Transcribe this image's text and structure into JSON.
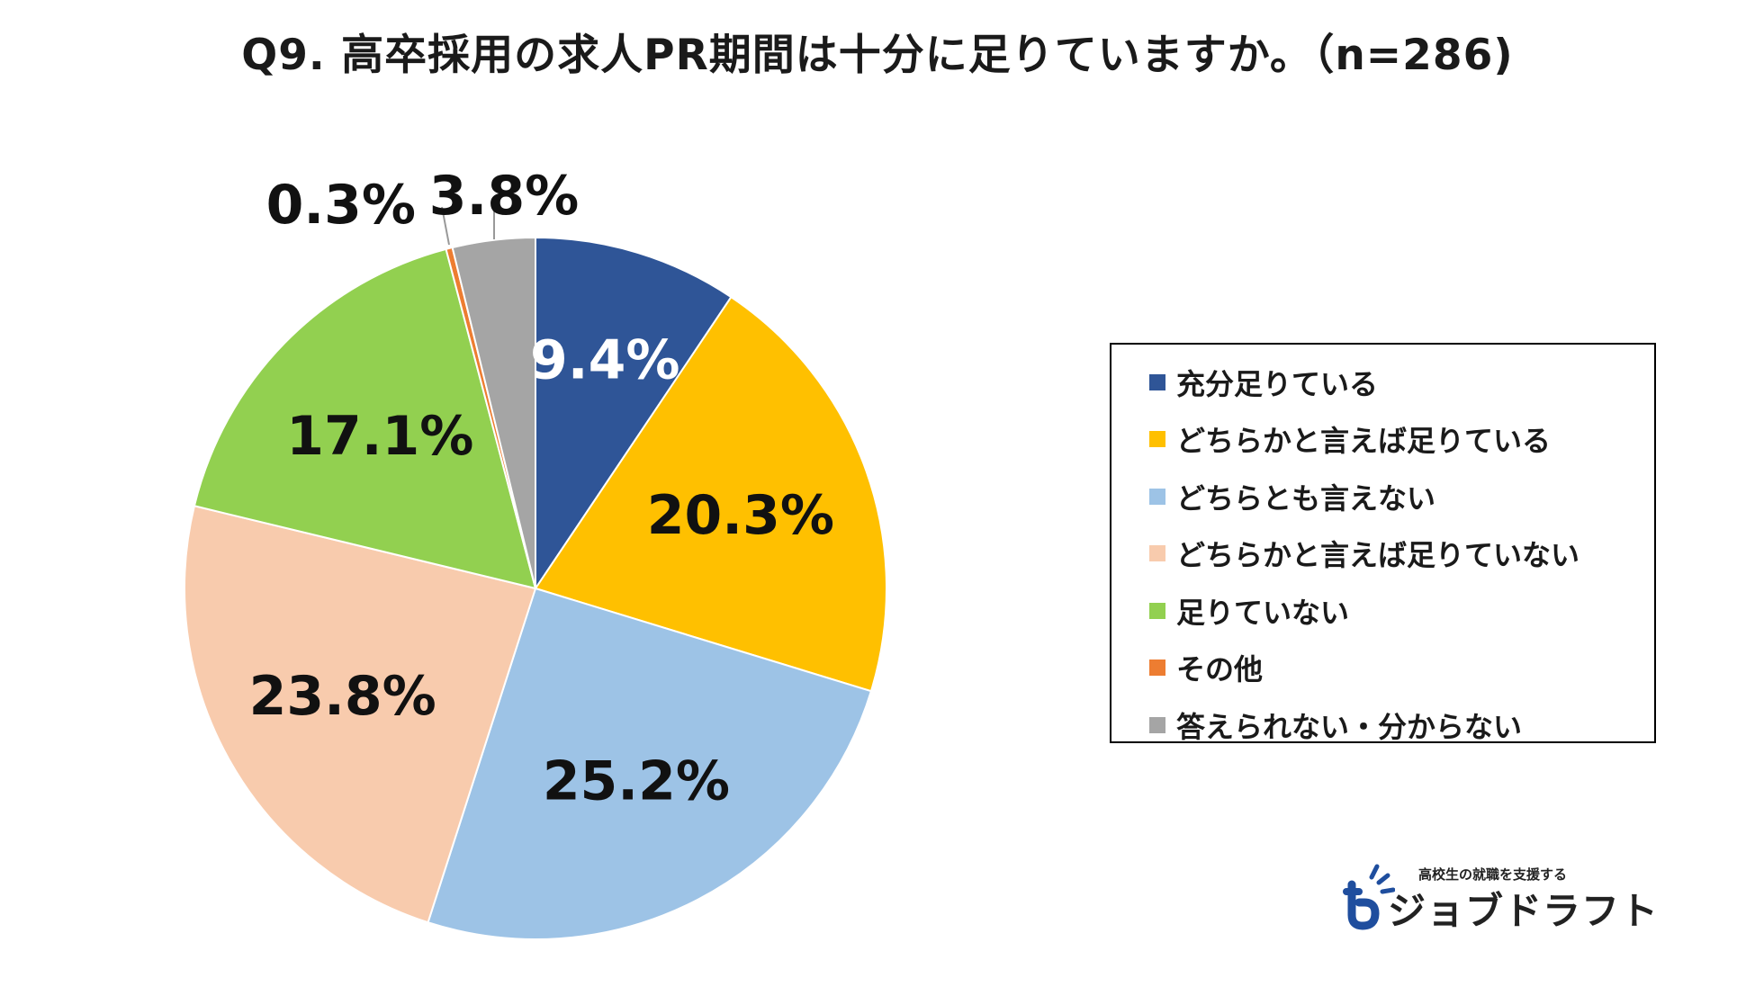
{
  "chart_data": {
    "type": "pie",
    "title": "Q9. 高卒採用の求人PR期間は十分に足りていますか。（n=286)",
    "slices": [
      {
        "label": "充分足りている",
        "value": 9.4,
        "display": "9.4%",
        "color": "#2F5597",
        "text_color": "#ffffff"
      },
      {
        "label": "どちらかと言えば足りている",
        "value": 20.3,
        "display": "20.3%",
        "color": "#FFC000",
        "text_color": "#111111"
      },
      {
        "label": "どちらとも言えない",
        "value": 25.2,
        "display": "25.2%",
        "color": "#9DC3E6",
        "text_color": "#111111"
      },
      {
        "label": "どちらかと言えば足りていない",
        "value": 23.8,
        "display": "23.8%",
        "color": "#F8CBAD",
        "text_color": "#111111"
      },
      {
        "label": "足りていない",
        "value": 17.1,
        "display": "17.1%",
        "color": "#92D050",
        "text_color": "#111111"
      },
      {
        "label": "その他",
        "value": 0.3,
        "display": "0.3%",
        "color": "#ED7D31",
        "text_color": "#111111"
      },
      {
        "label": "答えられない・分からない",
        "value": 3.8,
        "display": "3.8%",
        "color": "#A5A5A5",
        "text_color": "#111111"
      }
    ],
    "legend_position": "right"
  },
  "logo": {
    "tagline": "高校生の就職を支援する",
    "name": "ジョブドラフト",
    "color": "#1F4E9E"
  }
}
